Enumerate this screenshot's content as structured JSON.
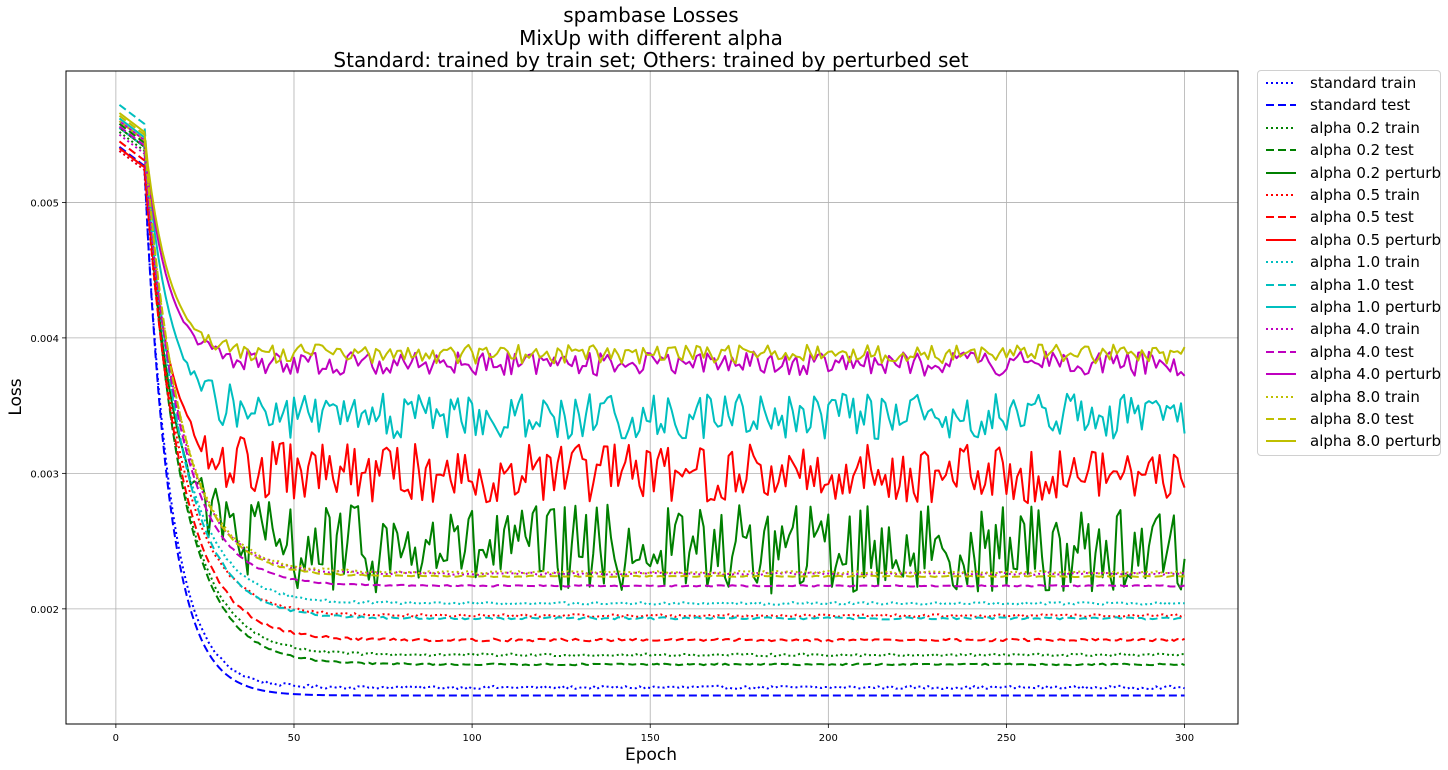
{
  "chart_data": {
    "type": "line",
    "title": [
      "spambase Losses",
      "MixUp with different alpha",
      "Standard: trained by train set; Others: trained by perturbed set"
    ],
    "xlabel": "Epoch",
    "ylabel": "Loss",
    "xlim": [
      -14,
      315
    ],
    "ylim": [
      0.00115,
      0.00597
    ],
    "xticks": [
      0,
      50,
      100,
      150,
      200,
      250,
      300
    ],
    "yticks": [
      0.002,
      0.003,
      0.004,
      0.005
    ],
    "ytick_labels": [
      "0.002",
      "0.003",
      "0.004",
      "0.005"
    ],
    "grid": true,
    "legend_position": "outside upper right",
    "series": [
      {
        "name": "standard train",
        "color": "#0000ff",
        "style": "dotted",
        "start": 0.00538,
        "end": 0.00142,
        "k": 0.135,
        "noise": 1.2e-05
      },
      {
        "name": "standard test",
        "color": "#0000ff",
        "style": "dashed",
        "start": 0.00541,
        "end": 0.00136,
        "k": 0.14,
        "noise": 0
      },
      {
        "name": "alpha 0.2 train",
        "color": "#008000",
        "style": "dotted",
        "start": 0.00552,
        "end": 0.00166,
        "k": 0.1,
        "noise": 1e-05
      },
      {
        "name": "alpha 0.2 test",
        "color": "#008000",
        "style": "dashed",
        "start": 0.00558,
        "end": 0.00159,
        "k": 0.1,
        "noise": 6e-06
      },
      {
        "name": "alpha 0.2 perturb",
        "color": "#008000",
        "style": "solid",
        "start": 0.00555,
        "end": 0.00244,
        "k": 0.13,
        "noise": 0.00033
      },
      {
        "name": "alpha 0.5 train",
        "color": "#ff0000",
        "style": "dotted",
        "start": 0.00538,
        "end": 0.00195,
        "k": 0.1,
        "noise": 1e-05
      },
      {
        "name": "alpha 0.5 test",
        "color": "#ff0000",
        "style": "dashed",
        "start": 0.00545,
        "end": 0.00177,
        "k": 0.1,
        "noise": 1e-05
      },
      {
        "name": "alpha 0.5 perturb",
        "color": "#ff0000",
        "style": "solid",
        "start": 0.0054,
        "end": 0.003,
        "k": 0.14,
        "noise": 0.00022
      },
      {
        "name": "alpha 1.0 train",
        "color": "#00bfbf",
        "style": "dotted",
        "start": 0.00555,
        "end": 0.00204,
        "k": 0.1,
        "noise": 1e-05
      },
      {
        "name": "alpha 1.0 test",
        "color": "#00bfbf",
        "style": "dashed",
        "start": 0.00572,
        "end": 0.00193,
        "k": 0.1,
        "noise": 8e-06
      },
      {
        "name": "alpha 1.0 perturb",
        "color": "#00bfbf",
        "style": "solid",
        "start": 0.00562,
        "end": 0.00342,
        "k": 0.14,
        "noise": 0.00017
      },
      {
        "name": "alpha 4.0 train",
        "color": "#bf00bf",
        "style": "dotted",
        "start": 0.0055,
        "end": 0.00226,
        "k": 0.1,
        "noise": 1e-05
      },
      {
        "name": "alpha 4.0 test",
        "color": "#bf00bf",
        "style": "dashed",
        "start": 0.00556,
        "end": 0.00217,
        "k": 0.1,
        "noise": 5e-06
      },
      {
        "name": "alpha 4.0 perturb",
        "color": "#bf00bf",
        "style": "solid",
        "start": 0.0056,
        "end": 0.00381,
        "k": 0.15,
        "noise": 9e-05
      },
      {
        "name": "alpha 8.0 train",
        "color": "#bfbf00",
        "style": "dotted",
        "start": 0.0056,
        "end": 0.00227,
        "k": 0.1,
        "noise": 1e-05
      },
      {
        "name": "alpha 8.0 test",
        "color": "#bfbf00",
        "style": "dashed",
        "start": 0.00564,
        "end": 0.00224,
        "k": 0.1,
        "noise": 5e-06
      },
      {
        "name": "alpha 8.0 perturb",
        "color": "#bfbf00",
        "style": "solid",
        "start": 0.00566,
        "end": 0.00388,
        "k": 0.15,
        "noise": 7e-05
      }
    ]
  }
}
